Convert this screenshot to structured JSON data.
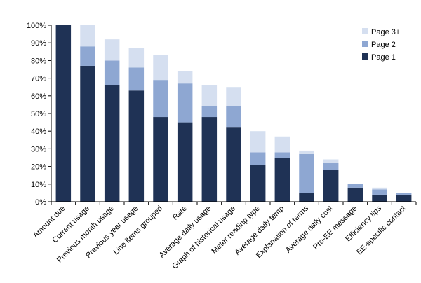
{
  "chart_data": {
    "type": "bar",
    "stacked": true,
    "categories": [
      "Amount due",
      "Current usage",
      "Previous month usage",
      "Previous year usage",
      "Line items grouped",
      "Rate",
      "Average daily usage",
      "Graph of historical usage",
      "Meter reading type",
      "Average daily temp",
      "Explanation of terms",
      "Average daily cost",
      "Pro-EE message",
      "Efficiency tips",
      "EE-specific contact"
    ],
    "series": [
      {
        "name": "Page 1",
        "color": "#1f3255",
        "values": [
          100,
          77,
          66,
          63,
          48,
          45,
          48,
          42,
          21,
          25,
          5,
          18,
          8,
          4,
          4
        ]
      },
      {
        "name": "Page 2",
        "color": "#8ea7d2",
        "values": [
          0,
          11,
          14,
          13,
          21,
          22,
          6,
          12,
          7,
          3,
          22,
          4,
          2,
          3,
          1
        ]
      },
      {
        "name": "Page 3+",
        "color": "#d5dff0",
        "values": [
          0,
          12,
          12,
          11,
          14,
          7,
          12,
          11,
          12,
          9,
          2,
          2,
          0,
          1,
          0
        ]
      }
    ],
    "legend_order": [
      "Page 3+",
      "Page 2",
      "Page 1"
    ],
    "legend_position": "top-right",
    "ylim": [
      0,
      100
    ],
    "yticks": [
      "0%",
      "10%",
      "20%",
      "30%",
      "40%",
      "50%",
      "60%",
      "70%",
      "80%",
      "90%",
      "100%"
    ],
    "grid": false,
    "xlabel": "",
    "ylabel": "",
    "title": ""
  }
}
